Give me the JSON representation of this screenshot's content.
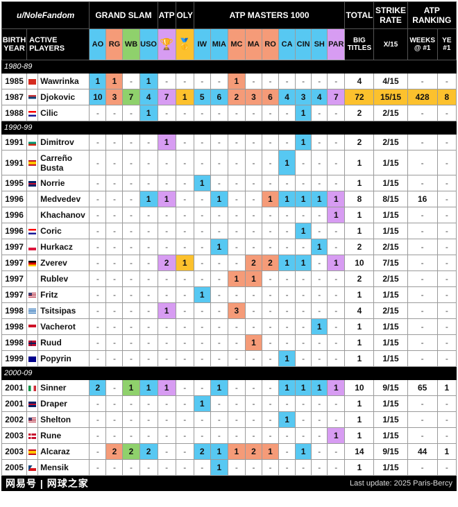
{
  "colors": {
    "blue": "#57c8f2",
    "orange": "#f59b78",
    "green": "#8fd16c",
    "purple": "#d79cf2",
    "gold": "#fcc12d"
  },
  "header": {
    "credit": "u/NoleFandom",
    "grand_slam": "GRAND SLAM",
    "atp": "ATP",
    "oly": "OLY",
    "masters": "ATP MASTERS 1000",
    "total": "TOTAL",
    "strike_rate": "STRIKE RATE",
    "atp_ranking": "ATP RANKING",
    "birth_year": "BIRTH YEAR",
    "active_players": "ACTIVE PLAYERS",
    "big_titles": "BIG TITLES",
    "x15": "X/15",
    "weeks": "WEEKS @ #1",
    "ye": "YE #1",
    "atp_icon": "trophy-icon",
    "oly_icon": "gold-medal-icon"
  },
  "columns": [
    {
      "label": "AO",
      "color": "blue"
    },
    {
      "label": "RG",
      "color": "orange"
    },
    {
      "label": "WB",
      "color": "green"
    },
    {
      "label": "USO",
      "color": "blue"
    },
    {
      "label": "",
      "color": "purple",
      "icon": "trophy-icon"
    },
    {
      "label": "",
      "color": "gold",
      "icon": "gold-medal-icon"
    },
    {
      "label": "IW",
      "color": "blue"
    },
    {
      "label": "MIA",
      "color": "blue"
    },
    {
      "label": "MC",
      "color": "orange"
    },
    {
      "label": "MA",
      "color": "orange"
    },
    {
      "label": "RO",
      "color": "orange"
    },
    {
      "label": "CA",
      "color": "blue"
    },
    {
      "label": "CIN",
      "color": "blue"
    },
    {
      "label": "SH",
      "color": "blue"
    },
    {
      "label": "PAR",
      "color": "purple"
    }
  ],
  "groups": [
    {
      "label": "1980-89",
      "players": [
        {
          "year": "1985",
          "flag": "switzerland",
          "name": "Wawrinka",
          "titles": [
            "1",
            "1",
            "-",
            "1",
            "-",
            "-",
            "-",
            "-",
            "1",
            "-",
            "-",
            "-",
            "-",
            "-",
            "-"
          ],
          "total": "4",
          "strike": "4/15",
          "weeks": "-",
          "ye": "-"
        },
        {
          "year": "1987",
          "flag": "serbia",
          "name": "Djokovic",
          "highlight": true,
          "titles": [
            "10",
            "3",
            "7",
            "4",
            "7",
            "1",
            "5",
            "6",
            "2",
            "3",
            "6",
            "4",
            "3",
            "4",
            "7"
          ],
          "total": "72",
          "strike": "15/15",
          "weeks": "428",
          "ye": "8"
        },
        {
          "year": "1988",
          "flag": "croatia",
          "name": "Cilic",
          "titles": [
            "-",
            "-",
            "-",
            "1",
            "-",
            "-",
            "-",
            "-",
            "-",
            "-",
            "-",
            "-",
            "1",
            "-",
            "-"
          ],
          "total": "2",
          "strike": "2/15",
          "weeks": "-",
          "ye": "-"
        }
      ]
    },
    {
      "label": "1990-99",
      "players": [
        {
          "year": "1991",
          "flag": "bulgaria",
          "name": "Dimitrov",
          "titles": [
            "-",
            "-",
            "-",
            "-",
            "1",
            "-",
            "-",
            "-",
            "-",
            "-",
            "-",
            "-",
            "1",
            "-",
            "-"
          ],
          "total": "2",
          "strike": "2/15",
          "weeks": "-",
          "ye": "-"
        },
        {
          "year": "1991",
          "flag": "spain",
          "name": "Carreño Busta",
          "tall": true,
          "titles": [
            "-",
            "-",
            "-",
            "-",
            "-",
            "-",
            "-",
            "-",
            "-",
            "-",
            "-",
            "1",
            "-",
            "-",
            "-"
          ],
          "total": "1",
          "strike": "1/15",
          "weeks": "-",
          "ye": "-"
        },
        {
          "year": "1995",
          "flag": "great-britain",
          "name": "Norrie",
          "titles": [
            "-",
            "-",
            "-",
            "-",
            "-",
            "-",
            "1",
            "-",
            "-",
            "-",
            "-",
            "-",
            "-",
            "-",
            "-"
          ],
          "total": "1",
          "strike": "1/15",
          "weeks": "-",
          "ye": "-"
        },
        {
          "year": "1996",
          "flag": "none",
          "name": "Medvedev",
          "titles": [
            "-",
            "-",
            "-",
            "1",
            "1",
            "-",
            "-",
            "1",
            "-",
            "-",
            "1",
            "1",
            "1",
            "1",
            "1"
          ],
          "total": "8",
          "strike": "8/15",
          "weeks": "16",
          "ye": "-"
        },
        {
          "year": "1996",
          "flag": "none",
          "name": "Khachanov",
          "titles": [
            "-",
            "-",
            "-",
            "-",
            "-",
            "-",
            "-",
            "-",
            "-",
            "-",
            "-",
            "-",
            "-",
            "-",
            "1"
          ],
          "total": "1",
          "strike": "1/15",
          "weeks": "-",
          "ye": "-"
        },
        {
          "year": "1996",
          "flag": "croatia",
          "name": "Coric",
          "titles": [
            "-",
            "-",
            "-",
            "-",
            "-",
            "-",
            "-",
            "-",
            "-",
            "-",
            "-",
            "-",
            "1",
            "-",
            "-"
          ],
          "total": "1",
          "strike": "1/15",
          "weeks": "-",
          "ye": "-"
        },
        {
          "year": "1997",
          "flag": "poland",
          "name": "Hurkacz",
          "titles": [
            "-",
            "-",
            "-",
            "-",
            "-",
            "-",
            "-",
            "1",
            "-",
            "-",
            "-",
            "-",
            "-",
            "1",
            "-"
          ],
          "total": "2",
          "strike": "2/15",
          "weeks": "-",
          "ye": "-"
        },
        {
          "year": "1997",
          "flag": "germany",
          "name": "Zverev",
          "titles": [
            "-",
            "-",
            "-",
            "-",
            "2",
            "1",
            "-",
            "-",
            "-",
            "2",
            "2",
            "1",
            "1",
            "-",
            "1"
          ],
          "total": "10",
          "strike": "7/15",
          "weeks": "-",
          "ye": "-"
        },
        {
          "year": "1997",
          "flag": "none",
          "name": "Rublev",
          "titles": [
            "-",
            "-",
            "-",
            "-",
            "-",
            "-",
            "-",
            "-",
            "1",
            "1",
            "-",
            "-",
            "-",
            "-",
            "-"
          ],
          "total": "2",
          "strike": "2/15",
          "weeks": "-",
          "ye": "-"
        },
        {
          "year": "1997",
          "flag": "usa",
          "name": "Fritz",
          "titles": [
            "-",
            "-",
            "-",
            "-",
            "-",
            "-",
            "1",
            "-",
            "-",
            "-",
            "-",
            "-",
            "-",
            "-",
            "-"
          ],
          "total": "1",
          "strike": "1/15",
          "weeks": "-",
          "ye": "-"
        },
        {
          "year": "1998",
          "flag": "greece",
          "name": "Tsitsipas",
          "titles": [
            "-",
            "-",
            "-",
            "-",
            "1",
            "-",
            "-",
            "-",
            "3",
            "-",
            "-",
            "-",
            "-",
            "-",
            "-"
          ],
          "total": "4",
          "strike": "2/15",
          "weeks": "-",
          "ye": "-"
        },
        {
          "year": "1998",
          "flag": "monaco",
          "name": "Vacherot",
          "titles": [
            "-",
            "-",
            "-",
            "-",
            "-",
            "-",
            "-",
            "-",
            "-",
            "-",
            "-",
            "-",
            "-",
            "1",
            "-"
          ],
          "total": "1",
          "strike": "1/15",
          "weeks": "-",
          "ye": "-"
        },
        {
          "year": "1998",
          "flag": "norway",
          "name": "Ruud",
          "titles": [
            "-",
            "-",
            "-",
            "-",
            "-",
            "-",
            "-",
            "-",
            "-",
            "1",
            "-",
            "-",
            "-",
            "-",
            "-"
          ],
          "total": "1",
          "strike": "1/15",
          "weeks": "-",
          "ye": "-"
        },
        {
          "year": "1999",
          "flag": "australia",
          "name": "Popyrin",
          "titles": [
            "-",
            "-",
            "-",
            "-",
            "-",
            "-",
            "-",
            "-",
            "-",
            "-",
            "-",
            "1",
            "-",
            "-",
            "-"
          ],
          "total": "1",
          "strike": "1/15",
          "weeks": "-",
          "ye": "-"
        }
      ]
    },
    {
      "label": "2000-09",
      "players": [
        {
          "year": "2001",
          "flag": "italy",
          "name": "Sinner",
          "titles": [
            "2",
            "-",
            "1",
            "1",
            "1",
            "-",
            "-",
            "1",
            "-",
            "-",
            "-",
            "1",
            "1",
            "1",
            "1"
          ],
          "total": "10",
          "strike": "9/15",
          "weeks": "65",
          "ye": "1"
        },
        {
          "year": "2001",
          "flag": "great-britain",
          "name": "Draper",
          "titles": [
            "-",
            "-",
            "-",
            "-",
            "-",
            "-",
            "1",
            "-",
            "-",
            "-",
            "-",
            "-",
            "-",
            "-",
            "-"
          ],
          "total": "1",
          "strike": "1/15",
          "weeks": "-",
          "ye": "-"
        },
        {
          "year": "2002",
          "flag": "usa",
          "name": "Shelton",
          "titles": [
            "-",
            "-",
            "-",
            "-",
            "-",
            "-",
            "-",
            "-",
            "-",
            "-",
            "-",
            "1",
            "-",
            "-",
            "-"
          ],
          "total": "1",
          "strike": "1/15",
          "weeks": "-",
          "ye": "-"
        },
        {
          "year": "2003",
          "flag": "denmark",
          "name": "Rune",
          "titles": [
            "-",
            "-",
            "-",
            "-",
            "-",
            "-",
            "-",
            "-",
            "-",
            "-",
            "-",
            "-",
            "-",
            "-",
            "1"
          ],
          "total": "1",
          "strike": "1/15",
          "weeks": "-",
          "ye": "-"
        },
        {
          "year": "2003",
          "flag": "spain",
          "name": "Alcaraz",
          "titles": [
            "-",
            "2",
            "2",
            "2",
            "-",
            "-",
            "2",
            "1",
            "1",
            "2",
            "1",
            "-",
            "1",
            "-",
            "-"
          ],
          "total": "14",
          "strike": "9/15",
          "weeks": "44",
          "ye": "1"
        },
        {
          "year": "2005",
          "flag": "czechia",
          "name": "Mensik",
          "titles": [
            "-",
            "-",
            "-",
            "-",
            "-",
            "-",
            "-",
            "1",
            "-",
            "-",
            "-",
            "-",
            "-",
            "-",
            "-"
          ],
          "total": "1",
          "strike": "1/15",
          "weeks": "-",
          "ye": "-"
        }
      ]
    }
  ],
  "footer": {
    "last_update": "Last update: 2025 Paris-Bercy",
    "watermark": "网易号 | 网球之家"
  }
}
